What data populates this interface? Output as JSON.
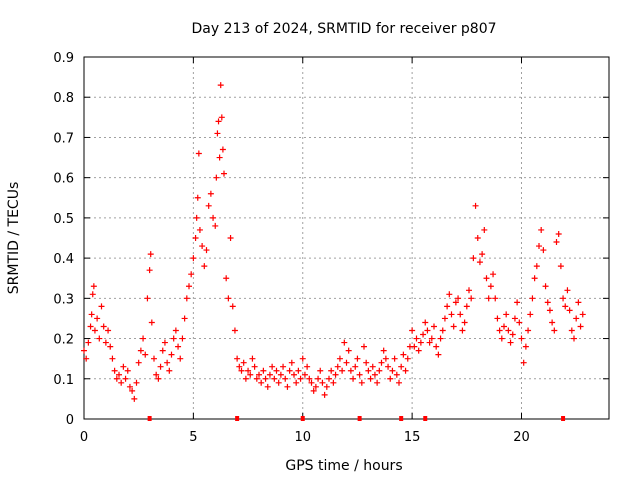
{
  "chart_data": {
    "type": "scatter",
    "title": "Day 213 of 2024, SRMTID for receiver p807",
    "xlabel": "GPS time / hours",
    "ylabel": "SRMTID / TECUs",
    "xlim": [
      0,
      24.0
    ],
    "ylim": [
      0,
      0.9
    ],
    "x_ticks": [
      0,
      5,
      10,
      15,
      20
    ],
    "y_ticks": [
      0,
      0.1,
      0.2,
      0.3,
      0.4,
      0.5,
      0.6,
      0.7,
      0.8,
      0.9
    ],
    "grid": true,
    "marker": "plus",
    "series": [
      {
        "name": "SRMTID",
        "color": "#ff0000",
        "points": [
          [
            0.0,
            0.17
          ],
          [
            0.1,
            0.15
          ],
          [
            0.2,
            0.19
          ],
          [
            0.3,
            0.23
          ],
          [
            0.35,
            0.26
          ],
          [
            0.4,
            0.31
          ],
          [
            0.45,
            0.33
          ],
          [
            0.5,
            0.22
          ],
          [
            0.6,
            0.25
          ],
          [
            0.7,
            0.2
          ],
          [
            0.8,
            0.28
          ],
          [
            0.9,
            0.23
          ],
          [
            1.0,
            0.19
          ],
          [
            1.1,
            0.22
          ],
          [
            1.2,
            0.18
          ],
          [
            1.3,
            0.15
          ],
          [
            1.4,
            0.12
          ],
          [
            1.5,
            0.1
          ],
          [
            1.6,
            0.11
          ],
          [
            1.7,
            0.09
          ],
          [
            1.8,
            0.13
          ],
          [
            1.9,
            0.1
          ],
          [
            2.0,
            0.12
          ],
          [
            2.1,
            0.08
          ],
          [
            2.2,
            0.07
          ],
          [
            2.3,
            0.05
          ],
          [
            2.4,
            0.09
          ],
          [
            2.5,
            0.14
          ],
          [
            2.6,
            0.17
          ],
          [
            2.7,
            0.2
          ],
          [
            2.8,
            0.16
          ],
          [
            2.9,
            0.3
          ],
          [
            3.0,
            0.37
          ],
          [
            3.05,
            0.41
          ],
          [
            3.1,
            0.24
          ],
          [
            3.2,
            0.15
          ],
          [
            3.3,
            0.11
          ],
          [
            3.4,
            0.1
          ],
          [
            3.5,
            0.13
          ],
          [
            3.6,
            0.17
          ],
          [
            3.7,
            0.19
          ],
          [
            3.8,
            0.14
          ],
          [
            3.9,
            0.12
          ],
          [
            4.0,
            0.16
          ],
          [
            4.1,
            0.2
          ],
          [
            4.2,
            0.22
          ],
          [
            4.3,
            0.18
          ],
          [
            4.4,
            0.15
          ],
          [
            4.5,
            0.2
          ],
          [
            4.6,
            0.25
          ],
          [
            4.7,
            0.3
          ],
          [
            4.8,
            0.33
          ],
          [
            4.9,
            0.36
          ],
          [
            5.0,
            0.4
          ],
          [
            5.1,
            0.45
          ],
          [
            5.15,
            0.5
          ],
          [
            5.2,
            0.55
          ],
          [
            5.25,
            0.66
          ],
          [
            5.3,
            0.47
          ],
          [
            5.4,
            0.43
          ],
          [
            5.5,
            0.38
          ],
          [
            5.6,
            0.42
          ],
          [
            5.7,
            0.53
          ],
          [
            5.8,
            0.56
          ],
          [
            5.9,
            0.5
          ],
          [
            6.0,
            0.48
          ],
          [
            6.05,
            0.6
          ],
          [
            6.1,
            0.71
          ],
          [
            6.15,
            0.74
          ],
          [
            6.2,
            0.65
          ],
          [
            6.25,
            0.83
          ],
          [
            6.3,
            0.75
          ],
          [
            6.35,
            0.67
          ],
          [
            6.4,
            0.61
          ],
          [
            6.5,
            0.35
          ],
          [
            6.6,
            0.3
          ],
          [
            6.7,
            0.45
          ],
          [
            6.8,
            0.28
          ],
          [
            6.9,
            0.22
          ],
          [
            7.0,
            0.15
          ],
          [
            7.1,
            0.13
          ],
          [
            7.2,
            0.12
          ],
          [
            7.3,
            0.14
          ],
          [
            7.4,
            0.1
          ],
          [
            7.5,
            0.12
          ],
          [
            7.6,
            0.11
          ],
          [
            7.7,
            0.15
          ],
          [
            7.8,
            0.13
          ],
          [
            7.9,
            0.1
          ],
          [
            8.0,
            0.11
          ],
          [
            8.1,
            0.09
          ],
          [
            8.2,
            0.12
          ],
          [
            8.3,
            0.1
          ],
          [
            8.4,
            0.08
          ],
          [
            8.5,
            0.11
          ],
          [
            8.6,
            0.13
          ],
          [
            8.7,
            0.1
          ],
          [
            8.8,
            0.12
          ],
          [
            8.9,
            0.09
          ],
          [
            9.0,
            0.11
          ],
          [
            9.1,
            0.13
          ],
          [
            9.2,
            0.1
          ],
          [
            9.3,
            0.08
          ],
          [
            9.4,
            0.12
          ],
          [
            9.5,
            0.14
          ],
          [
            9.6,
            0.11
          ],
          [
            9.7,
            0.09
          ],
          [
            9.8,
            0.12
          ],
          [
            9.9,
            0.1
          ],
          [
            10.0,
            0.15
          ],
          [
            10.1,
            0.11
          ],
          [
            10.2,
            0.13
          ],
          [
            10.3,
            0.1
          ],
          [
            10.4,
            0.09
          ],
          [
            10.5,
            0.07
          ],
          [
            10.6,
            0.08
          ],
          [
            10.7,
            0.1
          ],
          [
            10.8,
            0.12
          ],
          [
            10.9,
            0.09
          ],
          [
            11.0,
            0.06
          ],
          [
            11.1,
            0.08
          ],
          [
            11.2,
            0.1
          ],
          [
            11.3,
            0.12
          ],
          [
            11.4,
            0.09
          ],
          [
            11.5,
            0.11
          ],
          [
            11.6,
            0.13
          ],
          [
            11.7,
            0.15
          ],
          [
            11.8,
            0.12
          ],
          [
            11.9,
            0.19
          ],
          [
            12.0,
            0.14
          ],
          [
            12.1,
            0.17
          ],
          [
            12.2,
            0.12
          ],
          [
            12.3,
            0.1
          ],
          [
            12.4,
            0.13
          ],
          [
            12.5,
            0.15
          ],
          [
            12.6,
            0.11
          ],
          [
            12.7,
            0.09
          ],
          [
            12.8,
            0.18
          ],
          [
            12.9,
            0.14
          ],
          [
            13.0,
            0.12
          ],
          [
            13.1,
            0.1
          ],
          [
            13.2,
            0.13
          ],
          [
            13.3,
            0.11
          ],
          [
            13.4,
            0.09
          ],
          [
            13.5,
            0.12
          ],
          [
            13.6,
            0.14
          ],
          [
            13.7,
            0.17
          ],
          [
            13.8,
            0.15
          ],
          [
            13.9,
            0.13
          ],
          [
            14.0,
            0.1
          ],
          [
            14.1,
            0.12
          ],
          [
            14.2,
            0.15
          ],
          [
            14.3,
            0.11
          ],
          [
            14.4,
            0.09
          ],
          [
            14.5,
            0.13
          ],
          [
            14.6,
            0.16
          ],
          [
            14.7,
            0.12
          ],
          [
            14.8,
            0.15
          ],
          [
            14.9,
            0.18
          ],
          [
            15.0,
            0.22
          ],
          [
            15.1,
            0.18
          ],
          [
            15.2,
            0.2
          ],
          [
            15.3,
            0.17
          ],
          [
            15.4,
            0.19
          ],
          [
            15.5,
            0.21
          ],
          [
            15.6,
            0.24
          ],
          [
            15.7,
            0.22
          ],
          [
            15.8,
            0.19
          ],
          [
            15.9,
            0.2
          ],
          [
            16.0,
            0.23
          ],
          [
            16.1,
            0.18
          ],
          [
            16.2,
            0.16
          ],
          [
            16.3,
            0.2
          ],
          [
            16.4,
            0.22
          ],
          [
            16.5,
            0.25
          ],
          [
            16.6,
            0.28
          ],
          [
            16.7,
            0.31
          ],
          [
            16.8,
            0.26
          ],
          [
            16.9,
            0.23
          ],
          [
            17.0,
            0.29
          ],
          [
            17.1,
            0.3
          ],
          [
            17.2,
            0.26
          ],
          [
            17.3,
            0.22
          ],
          [
            17.4,
            0.24
          ],
          [
            17.5,
            0.28
          ],
          [
            17.6,
            0.32
          ],
          [
            17.7,
            0.3
          ],
          [
            17.8,
            0.4
          ],
          [
            17.9,
            0.53
          ],
          [
            18.0,
            0.45
          ],
          [
            18.1,
            0.39
          ],
          [
            18.2,
            0.41
          ],
          [
            18.3,
            0.47
          ],
          [
            18.4,
            0.35
          ],
          [
            18.5,
            0.3
          ],
          [
            18.6,
            0.33
          ],
          [
            18.7,
            0.36
          ],
          [
            18.8,
            0.3
          ],
          [
            18.9,
            0.25
          ],
          [
            19.0,
            0.22
          ],
          [
            19.1,
            0.2
          ],
          [
            19.2,
            0.23
          ],
          [
            19.3,
            0.26
          ],
          [
            19.4,
            0.22
          ],
          [
            19.5,
            0.19
          ],
          [
            19.6,
            0.21
          ],
          [
            19.7,
            0.25
          ],
          [
            19.8,
            0.29
          ],
          [
            19.9,
            0.24
          ],
          [
            20.0,
            0.2
          ],
          [
            20.1,
            0.14
          ],
          [
            20.2,
            0.18
          ],
          [
            20.3,
            0.22
          ],
          [
            20.4,
            0.26
          ],
          [
            20.5,
            0.3
          ],
          [
            20.6,
            0.35
          ],
          [
            20.7,
            0.38
          ],
          [
            20.8,
            0.43
          ],
          [
            20.9,
            0.47
          ],
          [
            21.0,
            0.42
          ],
          [
            21.1,
            0.33
          ],
          [
            21.2,
            0.29
          ],
          [
            21.3,
            0.27
          ],
          [
            21.4,
            0.24
          ],
          [
            21.5,
            0.22
          ],
          [
            21.6,
            0.44
          ],
          [
            21.7,
            0.46
          ],
          [
            21.8,
            0.38
          ],
          [
            21.9,
            0.3
          ],
          [
            22.0,
            0.28
          ],
          [
            22.1,
            0.32
          ],
          [
            22.2,
            0.27
          ],
          [
            22.3,
            0.22
          ],
          [
            22.4,
            0.2
          ],
          [
            22.5,
            0.25
          ],
          [
            22.6,
            0.29
          ],
          [
            22.7,
            0.23
          ],
          [
            22.8,
            0.26
          ]
        ]
      }
    ],
    "axis_markers": [
      3.0,
      7.0,
      10.0,
      12.6,
      14.5,
      15.6,
      21.9
    ]
  }
}
